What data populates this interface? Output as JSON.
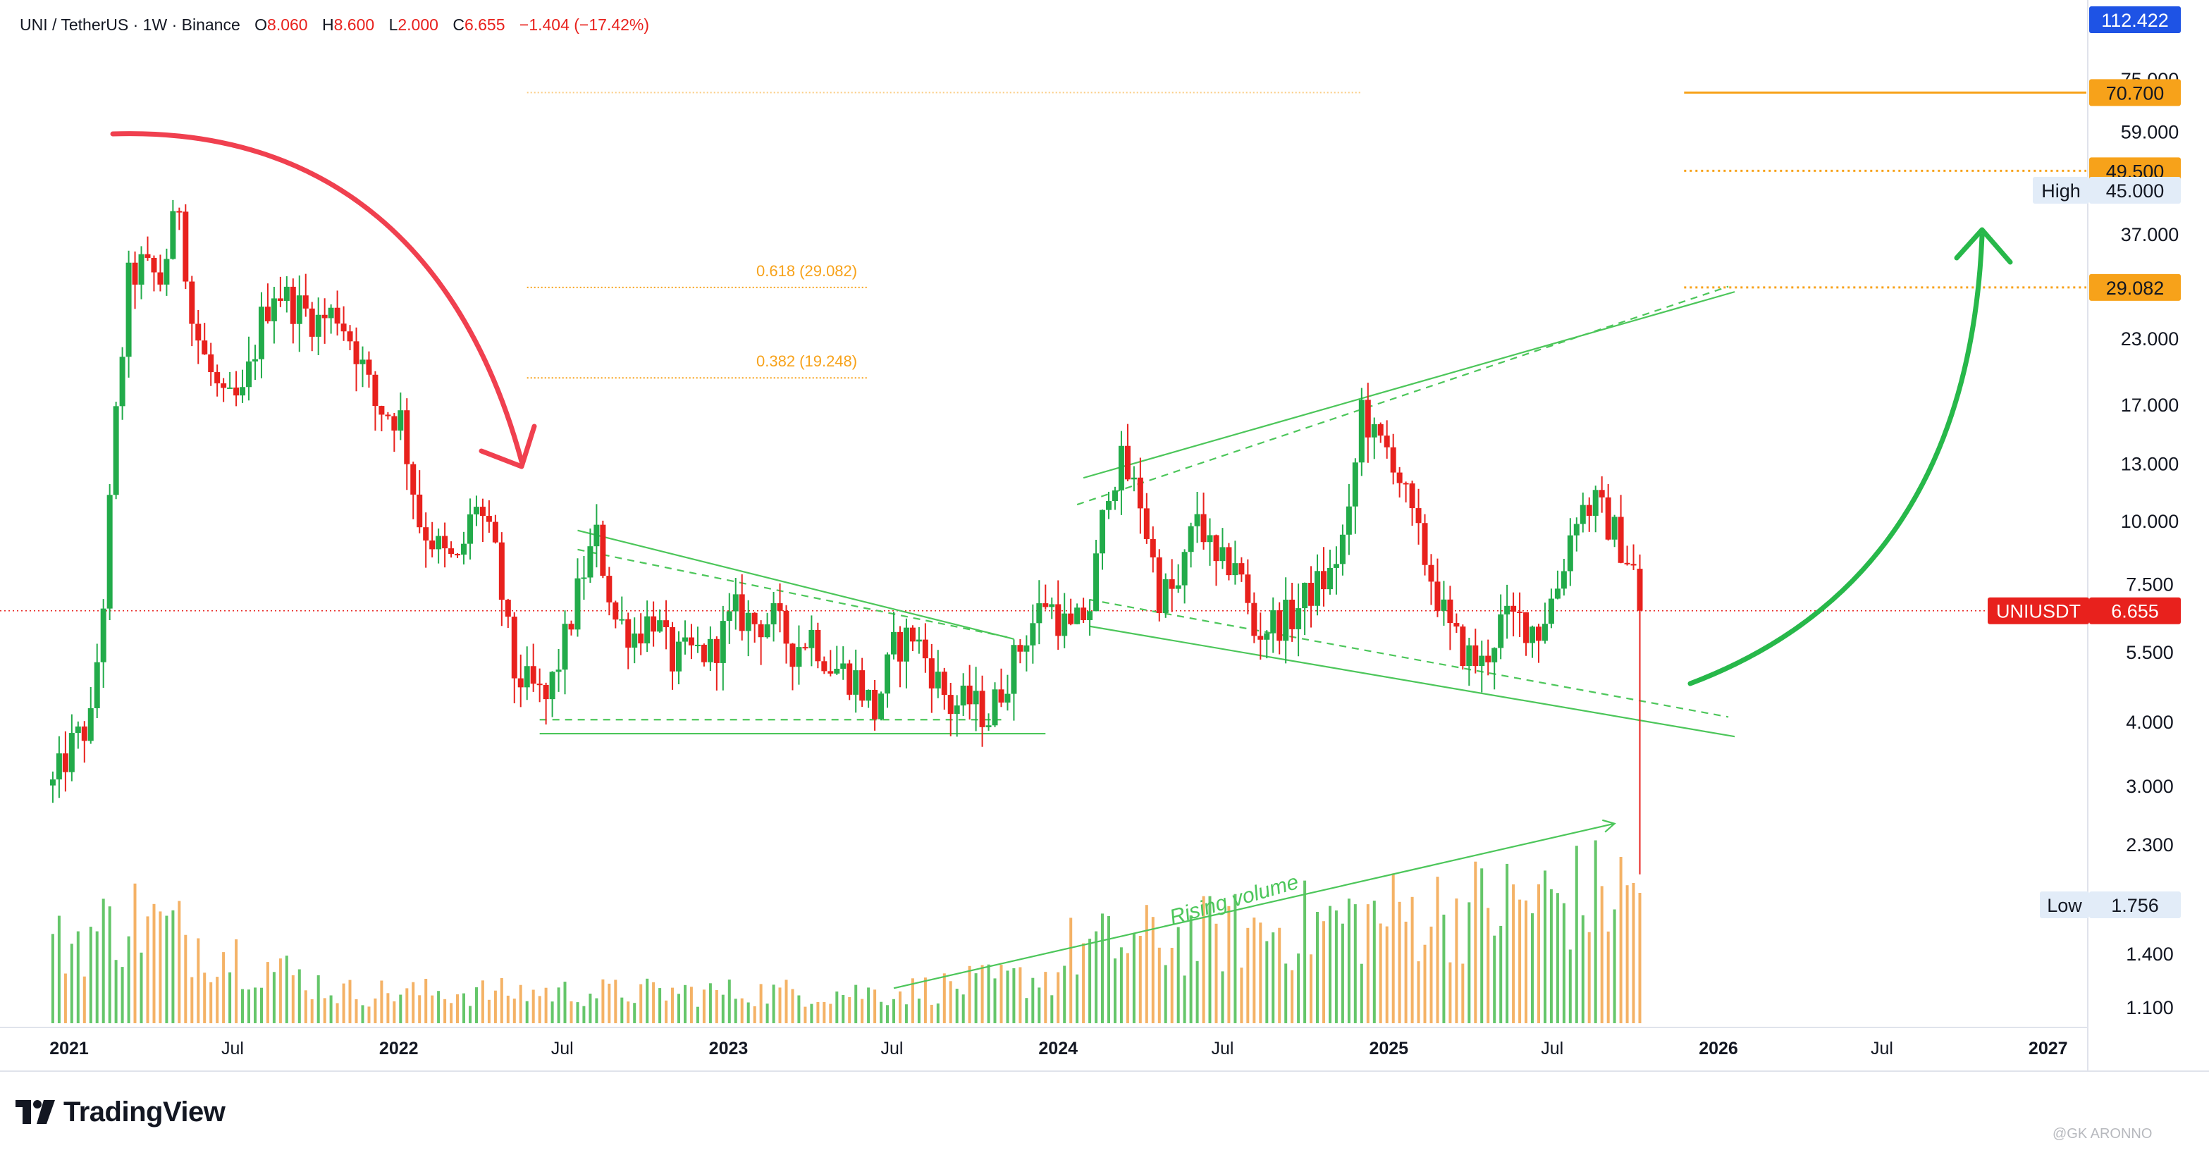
{
  "header": {
    "symbol": "UNI / TetherUS · 1W · Binance",
    "o_label": "O",
    "o_value": "8.060",
    "h_label": "H",
    "h_value": "8.600",
    "l_label": "L",
    "l_value": "2.000",
    "c_label": "C",
    "c_value": "6.655",
    "change": "−1.404 (−17.42%)"
  },
  "branding": {
    "logo_text": "TradingView",
    "watermark": "@GK ARONNO"
  },
  "colors": {
    "up": "#22ab4a",
    "down": "#e8211d",
    "fib": "#f7a21a",
    "trend": "#4cc65a",
    "arrow_red": "#f0404f",
    "arrow_green": "#27b84a",
    "vol_up": "#65c66a",
    "vol_down": "#f4b266",
    "price_tag": "#e8211d",
    "top_tag": "#1e53e5",
    "info_tag": "#e2ecf8"
  },
  "chart_data": {
    "type": "candlestick",
    "symbol": "UNI / TetherUS",
    "interval": "1W",
    "exchange": "Binance",
    "scale": "log",
    "ylim": [
      1.0,
      115
    ],
    "x_range": [
      "2020-12-14",
      "2027-02-15"
    ],
    "x_tick_labels": [
      "2021",
      "Jul",
      "2022",
      "Jul",
      "2023",
      "Jul",
      "2024",
      "Jul",
      "2025",
      "Jul",
      "2026",
      "Jul",
      "2027"
    ],
    "y_tick_labels": [
      "75.000",
      "59.000",
      "45.000",
      "37.000",
      "29.082",
      "23.000",
      "17.000",
      "13.000",
      "10.000",
      "7.500",
      "5.500",
      "4.000",
      "3.000",
      "2.300",
      "1.756",
      "1.400",
      "1.100"
    ],
    "last_price": {
      "label": "UNIUSDT",
      "value": "6.655"
    },
    "top_tag": "112.422",
    "high": {
      "label": "High",
      "value": "45.000"
    },
    "low": {
      "label": "Low",
      "value": "1.756"
    },
    "levels": [
      {
        "value": 70.7,
        "label": "70.700",
        "style": "solid"
      },
      {
        "value": 49.5,
        "label": "49.500",
        "style": "dotted"
      },
      {
        "value": 29.082,
        "label": "29.082",
        "style": "dotted"
      }
    ],
    "fib_levels": [
      {
        "ratio": "0.618",
        "value": 29.082,
        "label": "0.618 (29.082)"
      },
      {
        "ratio": "0.382",
        "value": 19.248,
        "label": "0.382 (19.248)"
      }
    ],
    "fib_top_level": 70.7,
    "annotations": [
      {
        "text": "Rising volume"
      }
    ],
    "price_path": [
      [
        "2020-12-14",
        3.0
      ],
      [
        "2021-01-04",
        3.6
      ],
      [
        "2021-01-25",
        4.0
      ],
      [
        "2021-02-08",
        7.0
      ],
      [
        "2021-02-22",
        16.0
      ],
      [
        "2021-03-08",
        30.0
      ],
      [
        "2021-03-22",
        32.0
      ],
      [
        "2021-04-12",
        30.0
      ],
      [
        "2021-05-03",
        43.0
      ],
      [
        "2021-05-17",
        25.0
      ],
      [
        "2021-05-31",
        21.0
      ],
      [
        "2021-06-21",
        17.0
      ],
      [
        "2021-07-12",
        17.5
      ],
      [
        "2021-08-02",
        25.0
      ],
      [
        "2021-08-16",
        29.0
      ],
      [
        "2021-09-06",
        27.0
      ],
      [
        "2021-10-04",
        25.0
      ],
      [
        "2021-10-25",
        26.0
      ],
      [
        "2021-11-15",
        22.0
      ],
      [
        "2021-12-06",
        17.0
      ],
      [
        "2022-01-03",
        16.0
      ],
      [
        "2022-01-24",
        10.0
      ],
      [
        "2022-02-21",
        8.5
      ],
      [
        "2022-03-07",
        8.2
      ],
      [
        "2022-03-28",
        11.0
      ],
      [
        "2022-04-18",
        8.5
      ],
      [
        "2022-05-09",
        5.0
      ],
      [
        "2022-06-13",
        4.4
      ],
      [
        "2022-07-04",
        5.8
      ],
      [
        "2022-07-25",
        8.0
      ],
      [
        "2022-08-08",
        9.3
      ],
      [
        "2022-08-29",
        6.4
      ],
      [
        "2022-09-19",
        6.0
      ],
      [
        "2022-10-10",
        6.5
      ],
      [
        "2022-10-31",
        5.3
      ],
      [
        "2022-11-21",
        5.5
      ],
      [
        "2022-12-12",
        5.5
      ],
      [
        "2023-01-09",
        6.6
      ],
      [
        "2023-01-30",
        6.3
      ],
      [
        "2023-02-20",
        6.4
      ],
      [
        "2023-03-13",
        5.6
      ],
      [
        "2023-04-03",
        6.0
      ],
      [
        "2023-04-24",
        5.2
      ],
      [
        "2023-05-22",
        4.9
      ],
      [
        "2023-06-12",
        4.2
      ],
      [
        "2023-07-03",
        5.6
      ],
      [
        "2023-07-24",
        6.0
      ],
      [
        "2023-08-14",
        5.1
      ],
      [
        "2023-09-04",
        4.3
      ],
      [
        "2023-09-25",
        4.4
      ],
      [
        "2023-10-16",
        4.1
      ],
      [
        "2023-11-06",
        5.0
      ],
      [
        "2023-11-27",
        6.0
      ],
      [
        "2023-12-18",
        7.0
      ],
      [
        "2024-01-15",
        6.0
      ],
      [
        "2024-02-05",
        6.8
      ],
      [
        "2024-02-26",
        12.0
      ],
      [
        "2024-03-11",
        13.0
      ],
      [
        "2024-04-01",
        11.0
      ],
      [
        "2024-04-22",
        7.2
      ],
      [
        "2024-05-13",
        7.3
      ],
      [
        "2024-06-03",
        10.5
      ],
      [
        "2024-06-24",
        8.0
      ],
      [
        "2024-07-15",
        8.5
      ],
      [
        "2024-08-05",
        6.0
      ],
      [
        "2024-08-26",
        6.3
      ],
      [
        "2024-09-16",
        6.5
      ],
      [
        "2024-10-07",
        7.3
      ],
      [
        "2024-10-28",
        7.8
      ],
      [
        "2024-11-18",
        10.0
      ],
      [
        "2024-12-02",
        17.0
      ],
      [
        "2024-12-16",
        14.5
      ],
      [
        "2025-01-06",
        13.5
      ],
      [
        "2025-01-27",
        10.0
      ],
      [
        "2025-02-17",
        7.8
      ],
      [
        "2025-03-10",
        6.0
      ],
      [
        "2025-03-31",
        5.4
      ],
      [
        "2025-04-14",
        5.2
      ],
      [
        "2025-05-05",
        6.3
      ],
      [
        "2025-05-26",
        6.4
      ],
      [
        "2025-06-16",
        6.1
      ],
      [
        "2025-07-07",
        7.5
      ],
      [
        "2025-07-28",
        10.5
      ],
      [
        "2025-08-18",
        10.8
      ],
      [
        "2025-09-08",
        9.5
      ],
      [
        "2025-09-29",
        8.06
      ],
      [
        "2025-10-06",
        6.655
      ]
    ],
    "last_candle": {
      "date": "2025-10-06",
      "open": 8.06,
      "high": 8.6,
      "low": 2.0,
      "close": 6.655
    },
    "trendlines": [
      {
        "id": "early-wedge-top",
        "from": [
          "2022-07-18",
          9.6
        ],
        "to": [
          "2023-11-13",
          5.85
        ],
        "style": "solid"
      },
      {
        "id": "early-wedge-mid",
        "from": [
          "2022-07-18",
          8.8
        ],
        "to": [
          "2023-11-06",
          5.9
        ],
        "style": "dashed"
      },
      {
        "id": "early-base",
        "from": [
          "2022-06-06",
          3.8
        ],
        "to": [
          "2023-12-18",
          3.8
        ],
        "style": "solid"
      },
      {
        "id": "early-base-dashed",
        "from": [
          "2022-06-06",
          4.05
        ],
        "to": [
          "2023-10-30",
          4.05
        ],
        "style": "dashed"
      },
      {
        "id": "channel-top",
        "from": [
          "2024-01-29",
          12.2
        ],
        "to": [
          "2026-01-19",
          28.5
        ],
        "style": "solid"
      },
      {
        "id": "channel-top-dashed",
        "from": [
          "2024-01-22",
          10.8
        ],
        "to": [
          "2026-01-12",
          29.2
        ],
        "style": "dashed"
      },
      {
        "id": "channel-bottom",
        "from": [
          "2024-02-05",
          6.2
        ],
        "to": [
          "2026-01-19",
          3.75
        ],
        "style": "solid"
      },
      {
        "id": "channel-bottom-dashed",
        "from": [
          "2024-02-05",
          7.0
        ],
        "to": [
          "2026-01-12",
          4.1
        ],
        "style": "dashed"
      },
      {
        "id": "volume-trend",
        "from": [
          "2023-07-03",
          1.16
        ],
        "to": [
          "2025-09-08",
          2.33
        ],
        "style": "arrow"
      }
    ]
  }
}
